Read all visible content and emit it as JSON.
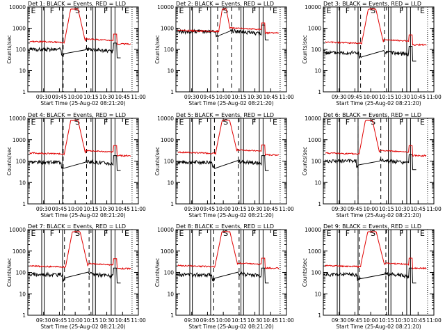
{
  "figure": {
    "x_axis_label": "Start Time (25-Aug-02 08:21:20)",
    "y_axis_label": "Counts/sec"
  },
  "colors": {
    "events": "#000000",
    "lld": "#e00000",
    "axes": "#000000"
  },
  "chart_data": [
    {
      "type": "line",
      "title": "Det 1: BLACK = Events, RED = LLD",
      "xlabel": "Start Time (25-Aug-02 08:21:20)",
      "ylabel": "Counts/sec",
      "x_ticks": [
        "09:30",
        "09:45",
        "10:00",
        "10:15",
        "10:30",
        "10:45",
        "11:00"
      ],
      "y_ticks": [
        "1",
        "10",
        "100",
        "1000",
        "10000"
      ],
      "y_scale": "log",
      "ylim": [
        1,
        10000
      ],
      "flags": [
        "E",
        "F",
        "S",
        "F",
        "E"
      ],
      "grid": false,
      "series": [
        {
          "name": "Events",
          "color": "#000000"
        },
        {
          "name": "LLD",
          "color": "#e00000"
        }
      ]
    },
    {
      "type": "line",
      "title": "Det 2: BLACK = Events, RED = LLD",
      "xlabel": "Start Time (25-Aug-02 08:21:20)",
      "ylabel": "Counts/sec",
      "x_ticks": [
        "09:30",
        "09:45",
        "10:00",
        "10:15",
        "10:30",
        "10:45",
        "11:00"
      ],
      "y_ticks": [
        "1",
        "10",
        "100",
        "1000",
        "10000"
      ],
      "y_scale": "log",
      "ylim": [
        1,
        10000
      ],
      "flags": [
        "E",
        "F",
        "S",
        "F",
        "E"
      ],
      "grid": false,
      "series": [
        {
          "name": "Events",
          "color": "#000000"
        },
        {
          "name": "LLD",
          "color": "#e00000"
        }
      ]
    },
    {
      "type": "line",
      "title": "Det 3: BLACK = Events, RED = LLD",
      "xlabel": "Start Time (25-Aug-02 08:21:20)",
      "ylabel": "Counts/sec",
      "x_ticks": [
        "09:30",
        "09:45",
        "10:00",
        "10:15",
        "10:30",
        "10:45",
        "11:00"
      ],
      "y_ticks": [
        "1",
        "10",
        "100",
        "1000",
        "10000"
      ],
      "y_scale": "log",
      "ylim": [
        1,
        10000
      ],
      "flags": [
        "E",
        "F",
        "S",
        "F",
        "E"
      ],
      "grid": false,
      "series": [
        {
          "name": "Events",
          "color": "#000000"
        },
        {
          "name": "LLD",
          "color": "#e00000"
        }
      ]
    },
    {
      "type": "line",
      "title": "Det 4: BLACK = Events, RED = LLD",
      "xlabel": "Start Time (25-Aug-02 08:21:20)",
      "ylabel": "Counts/sec",
      "x_ticks": [
        "09:30",
        "09:45",
        "10:00",
        "10:15",
        "10:30",
        "10:45",
        "11:00"
      ],
      "y_ticks": [
        "1",
        "10",
        "100",
        "1000",
        "10000"
      ],
      "y_scale": "log",
      "ylim": [
        1,
        10000
      ],
      "flags": [
        "E",
        "F",
        "S",
        "F",
        "E"
      ],
      "grid": false,
      "series": [
        {
          "name": "Events",
          "color": "#000000"
        },
        {
          "name": "LLD",
          "color": "#e00000"
        }
      ]
    },
    {
      "type": "line",
      "title": "Det 5: BLACK = Events, RED = LLD",
      "xlabel": "Start Time (25-Aug-02 08:21:20)",
      "ylabel": "Counts/sec",
      "x_ticks": [
        "09:30",
        "09:45",
        "10:00",
        "10:15",
        "10:30",
        "10:45",
        "11:00"
      ],
      "y_ticks": [
        "1",
        "10",
        "100",
        "1000",
        "10000"
      ],
      "y_scale": "log",
      "ylim": [
        1,
        10000
      ],
      "flags": [
        "E",
        "F",
        "S",
        "F",
        "E"
      ],
      "grid": false,
      "series": [
        {
          "name": "Events",
          "color": "#000000"
        },
        {
          "name": "LLD",
          "color": "#e00000"
        }
      ]
    },
    {
      "type": "line",
      "title": "Det 6: BLACK = Events, RED = LLD",
      "xlabel": "Start Time (25-Aug-02 08:21:20)",
      "ylabel": "Counts/sec",
      "x_ticks": [
        "09:30",
        "09:45",
        "10:00",
        "10:15",
        "10:30",
        "10:45",
        "11:00"
      ],
      "y_ticks": [
        "1",
        "10",
        "100",
        "1000",
        "10000"
      ],
      "y_scale": "log",
      "ylim": [
        1,
        10000
      ],
      "flags": [
        "E",
        "F",
        "S",
        "F",
        "E"
      ],
      "grid": false,
      "series": [
        {
          "name": "Events",
          "color": "#000000"
        },
        {
          "name": "LLD",
          "color": "#e00000"
        }
      ]
    },
    {
      "type": "line",
      "title": "Det 7: BLACK = Events, RED = LLD",
      "xlabel": "Start Time (25-Aug-02 08:21:20)",
      "ylabel": "Counts/sec",
      "x_ticks": [
        "09:30",
        "09:45",
        "10:00",
        "10:15",
        "10:30",
        "10:45",
        "11:00"
      ],
      "y_ticks": [
        "1",
        "10",
        "100",
        "1000",
        "10000"
      ],
      "y_scale": "log",
      "ylim": [
        1,
        10000
      ],
      "flags": [
        "E",
        "F",
        "S",
        "F",
        "E"
      ],
      "grid": false,
      "series": [
        {
          "name": "Events",
          "color": "#000000"
        },
        {
          "name": "LLD",
          "color": "#e00000"
        }
      ]
    },
    {
      "type": "line",
      "title": "Det 8: BLACK = Events, RED = LLD",
      "xlabel": "Start Time (25-Aug-02 08:21:20)",
      "ylabel": "Counts/sec",
      "x_ticks": [
        "09:30",
        "09:45",
        "10:00",
        "10:15",
        "10:30",
        "10:45",
        "11:00"
      ],
      "y_ticks": [
        "1",
        "10",
        "100",
        "1000",
        "10000"
      ],
      "y_scale": "log",
      "ylim": [
        1,
        10000
      ],
      "flags": [
        "E",
        "F",
        "S",
        "F",
        "E"
      ],
      "grid": false,
      "series": [
        {
          "name": "Events",
          "color": "#000000"
        },
        {
          "name": "LLD",
          "color": "#e00000"
        }
      ]
    },
    {
      "type": "line",
      "title": "Det 9: BLACK = Events, RED = LLD",
      "xlabel": "Start Time (25-Aug-02 08:21:20)",
      "ylabel": "Counts/sec",
      "x_ticks": [
        "09:30",
        "09:45",
        "10:00",
        "10:15",
        "10:30",
        "10:45",
        "11:00"
      ],
      "y_ticks": [
        "1",
        "10",
        "100",
        "1000",
        "10000"
      ],
      "y_scale": "log",
      "ylim": [
        1,
        10000
      ],
      "flags": [
        "E",
        "F",
        "S",
        "F",
        "E"
      ],
      "grid": false,
      "series": [
        {
          "name": "Events",
          "color": "#000000"
        },
        {
          "name": "LLD",
          "color": "#e00000"
        }
      ]
    }
  ]
}
